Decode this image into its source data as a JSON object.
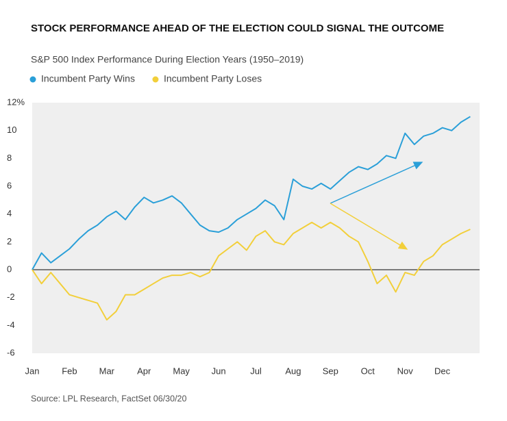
{
  "chart_data": {
    "type": "line",
    "title": "STOCK PERFORMANCE AHEAD OF THE ELECTION COULD SIGNAL THE OUTCOME",
    "subtitle": "S&P 500 Index Performance During Election Years (1950–2019)",
    "source": "Source: LPL Research, FactSet  06/30/20",
    "categories": [
      "Jan",
      null,
      null,
      null,
      "Feb",
      null,
      null,
      null,
      "Mar",
      null,
      null,
      null,
      "Apr",
      null,
      null,
      null,
      "May",
      null,
      null,
      null,
      "Jun",
      null,
      null,
      null,
      "Jul",
      null,
      null,
      null,
      "Aug",
      null,
      null,
      null,
      "Sep",
      null,
      null,
      null,
      "Oct",
      null,
      null,
      null,
      "Nov",
      null,
      null,
      null,
      "Dec",
      null,
      null,
      null
    ],
    "series": [
      {
        "name": "Incumbent Party Wins",
        "color": "#2a9fd8",
        "values": [
          0,
          1.2,
          0.5,
          1.0,
          1.5,
          2.2,
          2.8,
          3.2,
          3.8,
          4.2,
          3.6,
          4.5,
          5.2,
          4.8,
          5.0,
          5.3,
          4.8,
          4.0,
          3.2,
          2.8,
          2.7,
          3.0,
          3.6,
          4.0,
          4.4,
          5.0,
          4.6,
          3.6,
          6.5,
          6.0,
          5.8,
          6.2,
          5.8,
          6.4,
          7.0,
          7.4,
          7.2,
          7.6,
          8.2,
          8.0,
          9.8,
          9.0,
          9.6,
          9.8,
          10.2,
          10.0,
          10.6,
          11.0
        ]
      },
      {
        "name": "Incumbent Party Loses",
        "color": "#f2cf3a",
        "values": [
          0,
          -1.0,
          -0.2,
          -1.0,
          -1.8,
          -2.0,
          -2.2,
          -2.4,
          -3.6,
          -3.0,
          -1.8,
          -1.8,
          -1.4,
          -1.0,
          -0.6,
          -0.4,
          -0.4,
          -0.2,
          -0.5,
          -0.2,
          1.0,
          1.5,
          2.0,
          1.4,
          2.4,
          2.8,
          2.0,
          1.8,
          2.6,
          3.0,
          3.4,
          3.0,
          3.4,
          3.0,
          2.4,
          2.0,
          0.6,
          -1.0,
          -0.4,
          -1.6,
          -0.2,
          -0.4,
          0.6,
          1.0,
          1.8,
          2.2,
          2.6,
          2.9
        ]
      }
    ],
    "ylim": [
      -6,
      12
    ],
    "yticks": [
      -6,
      -4,
      -2,
      0,
      2,
      4,
      6,
      8,
      10,
      {
        "value": 12,
        "label": "12%"
      }
    ],
    "grid": false
  }
}
